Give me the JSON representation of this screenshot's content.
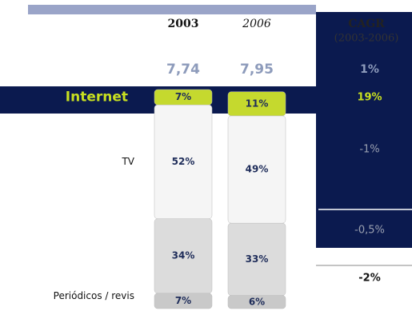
{
  "chart_data": {
    "type": "stacked-bar",
    "categories": [
      "2003",
      "2006"
    ],
    "totals": {
      "values": [
        7.74,
        7.95
      ],
      "value_labels": [
        "7,74",
        "7,95"
      ]
    },
    "series": [
      {
        "name": "Periódicos / revis",
        "color": "#c9c9c9",
        "values": [
          7,
          6
        ],
        "value_labels": [
          "7%",
          "6%"
        ]
      },
      {
        "name": null,
        "color": "#dcdcdc",
        "values": [
          34,
          33
        ],
        "value_labels": [
          "34%",
          "33%"
        ]
      },
      {
        "name": "TV",
        "color": "#f5f5f5",
        "values": [
          52,
          49
        ],
        "value_labels": [
          "52%",
          "49%"
        ]
      },
      {
        "name": "Internet",
        "color": "#c5d92e",
        "values": [
          7,
          11
        ],
        "value_labels": [
          "7%",
          "11%"
        ]
      }
    ],
    "cagr": {
      "header": "CAGR",
      "subheader": "(2003-2006)",
      "values": [
        1,
        19,
        -1,
        -0.5,
        -2
      ],
      "value_labels": [
        "1%",
        "19%",
        "-1%",
        "-0,5%",
        "-2%"
      ]
    }
  }
}
